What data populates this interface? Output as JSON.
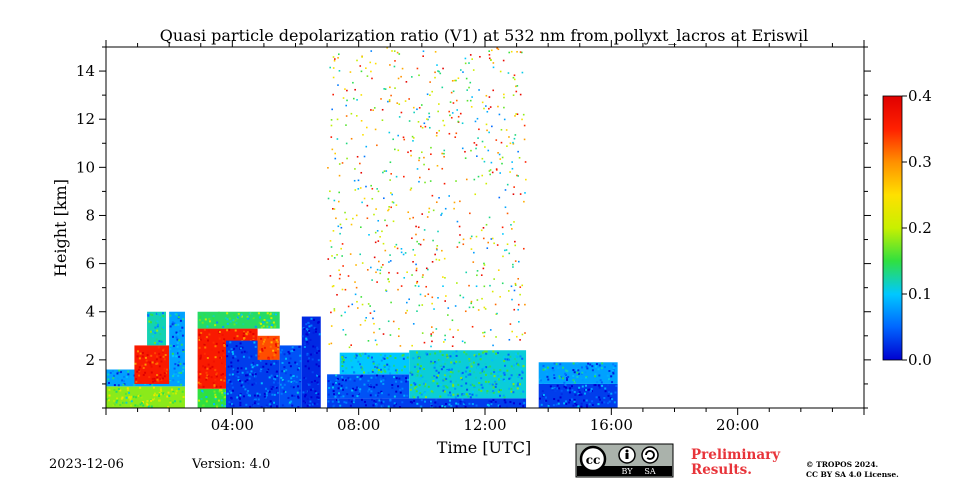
{
  "chart_data": {
    "type": "heatmap",
    "title": "Quasi particle depolarization ratio (V1) at 532 nm from pollyxt_lacros at Eriswil",
    "xlabel": "Time [UTC]",
    "ylabel": "Height [km]",
    "xlim_hours": [
      0,
      24
    ],
    "ylim_km": [
      0,
      15
    ],
    "x_ticks": [
      {
        "hour": 4,
        "label": "04:00"
      },
      {
        "hour": 8,
        "label": "08:00"
      },
      {
        "hour": 12,
        "label": "12:00"
      },
      {
        "hour": 16,
        "label": "16:00"
      },
      {
        "hour": 20,
        "label": "20:00"
      }
    ],
    "y_ticks": [
      {
        "value": 2,
        "label": "2"
      },
      {
        "value": 4,
        "label": "4"
      },
      {
        "value": 6,
        "label": "6"
      },
      {
        "value": 8,
        "label": "8"
      },
      {
        "value": 10,
        "label": "10"
      },
      {
        "value": 12,
        "label": "12"
      },
      {
        "value": 14,
        "label": "14"
      }
    ],
    "colorbar": {
      "min": 0.0,
      "max": 0.4,
      "colors": [
        "#0000d0",
        "#0066ff",
        "#00c8ff",
        "#30e040",
        "#c8f000",
        "#ffe000",
        "#ff9000",
        "#ff2000",
        "#e00000"
      ],
      "ticks": [
        {
          "value": 0.0,
          "label": "0.0"
        },
        {
          "value": 0.1,
          "label": "0.1"
        },
        {
          "value": 0.2,
          "label": "0.2"
        },
        {
          "value": 0.3,
          "label": "0.3"
        },
        {
          "value": 0.4,
          "label": "0.4"
        }
      ]
    },
    "regions": [
      {
        "t0": 0.0,
        "t1": 2.5,
        "h0": 0.0,
        "h1": 0.9,
        "v": 0.18
      },
      {
        "t0": 0.0,
        "t1": 2.5,
        "h0": 0.9,
        "h1": 1.6,
        "v": 0.08
      },
      {
        "t0": 0.9,
        "t1": 2.0,
        "h0": 1.0,
        "h1": 2.6,
        "v": 0.36
      },
      {
        "t0": 1.3,
        "t1": 1.9,
        "h0": 2.6,
        "h1": 4.0,
        "v": 0.12
      },
      {
        "t0": 2.0,
        "t1": 2.5,
        "h0": 1.2,
        "h1": 4.0,
        "v": 0.08
      },
      {
        "t0": 2.9,
        "t1": 5.0,
        "h0": 0.0,
        "h1": 0.8,
        "v": 0.15
      },
      {
        "t0": 2.9,
        "t1": 4.8,
        "h0": 0.8,
        "h1": 3.3,
        "v": 0.36
      },
      {
        "t0": 3.8,
        "t1": 5.5,
        "h0": 0.0,
        "h1": 2.8,
        "v": 0.03
      },
      {
        "t0": 4.8,
        "t1": 5.5,
        "h0": 2.0,
        "h1": 3.0,
        "v": 0.33
      },
      {
        "t0": 2.9,
        "t1": 5.5,
        "h0": 3.3,
        "h1": 4.0,
        "v": 0.14
      },
      {
        "t0": 5.5,
        "t1": 6.2,
        "h0": 0.0,
        "h1": 2.6,
        "v": 0.04
      },
      {
        "t0": 6.2,
        "t1": 6.8,
        "h0": 0.0,
        "h1": 3.8,
        "v": 0.02
      },
      {
        "t0": 7.0,
        "t1": 13.3,
        "h0": 0.0,
        "h1": 0.4,
        "v": 0.03
      },
      {
        "t0": 7.0,
        "t1": 9.6,
        "h0": 0.4,
        "h1": 1.4,
        "v": 0.04
      },
      {
        "t0": 7.4,
        "t1": 9.6,
        "h0": 1.4,
        "h1": 2.3,
        "v": 0.1
      },
      {
        "t0": 9.6,
        "t1": 13.3,
        "h0": 0.4,
        "h1": 2.4,
        "v": 0.11
      },
      {
        "t0": 13.7,
        "t1": 16.2,
        "h0": 0.0,
        "h1": 1.0,
        "v": 0.03
      },
      {
        "t0": 13.7,
        "t1": 16.2,
        "h0": 1.0,
        "h1": 1.9,
        "v": 0.08
      }
    ],
    "sparse_scatter": {
      "t0": 7.0,
      "t1": 13.3,
      "h0": 2.5,
      "h1": 15.0,
      "value_range": [
        0.05,
        0.4
      ]
    }
  },
  "footer": {
    "date": "2023-12-06",
    "version": "Version: 4.0",
    "license_badge": {
      "by": "BY",
      "sa": "SA"
    },
    "preliminary_line1": "Preliminary",
    "preliminary_line2": "Results.",
    "copyright_line1": "© TROPOS 2024.",
    "copyright_line2": "CC BY SA 4.0 License."
  }
}
